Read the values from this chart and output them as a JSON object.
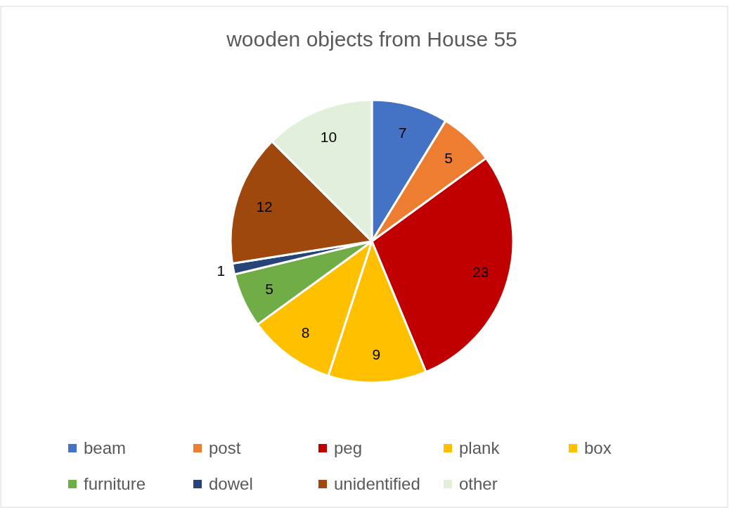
{
  "chart_data": {
    "type": "pie",
    "title": "wooden objects from House 55",
    "categories": [
      "beam",
      "post",
      "peg",
      "plank",
      "box",
      "furniture",
      "dowel",
      "unidentified",
      "other"
    ],
    "values": [
      7,
      5,
      23,
      9,
      8,
      5,
      1,
      12,
      10
    ],
    "colors": [
      "#4472c4",
      "#ed7d31",
      "#c00000",
      "#ffc000",
      "#ffc000",
      "#70ad47",
      "#264478",
      "#9e480e",
      "#e2efda"
    ],
    "data_labels": true,
    "legend": "bottom"
  }
}
